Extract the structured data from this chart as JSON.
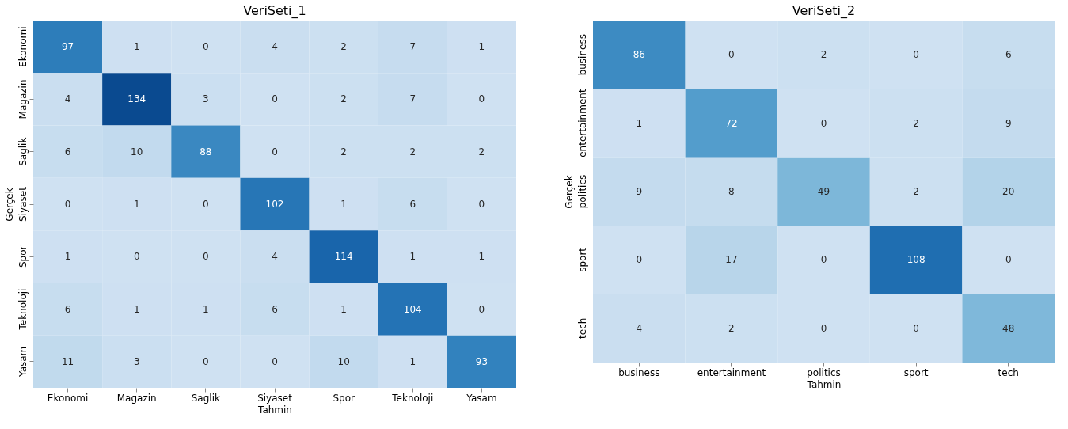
{
  "chart_data": [
    {
      "type": "heatmap",
      "title": "VeriSeti_1",
      "xlabel": "Tahmin",
      "ylabel": "Gerçek",
      "data_labels": true,
      "legend": false,
      "categories": [
        "Ekonomi",
        "Magazin",
        "Saglik",
        "Siyaset",
        "Spor",
        "Teknoloji",
        "Yasam"
      ],
      "y_categories": [
        "Ekonomi",
        "Magazin",
        "Saglik",
        "Siyaset",
        "Spor",
        "Teknoloji",
        "Yasam"
      ],
      "cells": [
        [
          97,
          1,
          0,
          4,
          2,
          7,
          1
        ],
        [
          4,
          134,
          3,
          0,
          2,
          7,
          0
        ],
        [
          6,
          10,
          88,
          0,
          2,
          2,
          2
        ],
        [
          0,
          1,
          0,
          102,
          1,
          6,
          0
        ],
        [
          1,
          0,
          0,
          4,
          114,
          1,
          1
        ],
        [
          6,
          1,
          1,
          6,
          1,
          104,
          0
        ],
        [
          11,
          3,
          0,
          0,
          10,
          1,
          93
        ]
      ]
    },
    {
      "type": "heatmap",
      "title": "VeriSeti_2",
      "xlabel": "Tahmin",
      "ylabel": "Gerçek",
      "data_labels": true,
      "legend": false,
      "categories": [
        "business",
        "entertainment",
        "politics",
        "sport",
        "tech"
      ],
      "y_categories": [
        "business",
        "entertainment",
        "politics",
        "sport",
        "tech"
      ],
      "cells": [
        [
          86,
          0,
          2,
          0,
          6
        ],
        [
          1,
          72,
          0,
          2,
          9
        ],
        [
          9,
          8,
          49,
          2,
          20
        ],
        [
          0,
          17,
          0,
          108,
          0
        ],
        [
          4,
          2,
          0,
          0,
          48
        ]
      ]
    }
  ]
}
